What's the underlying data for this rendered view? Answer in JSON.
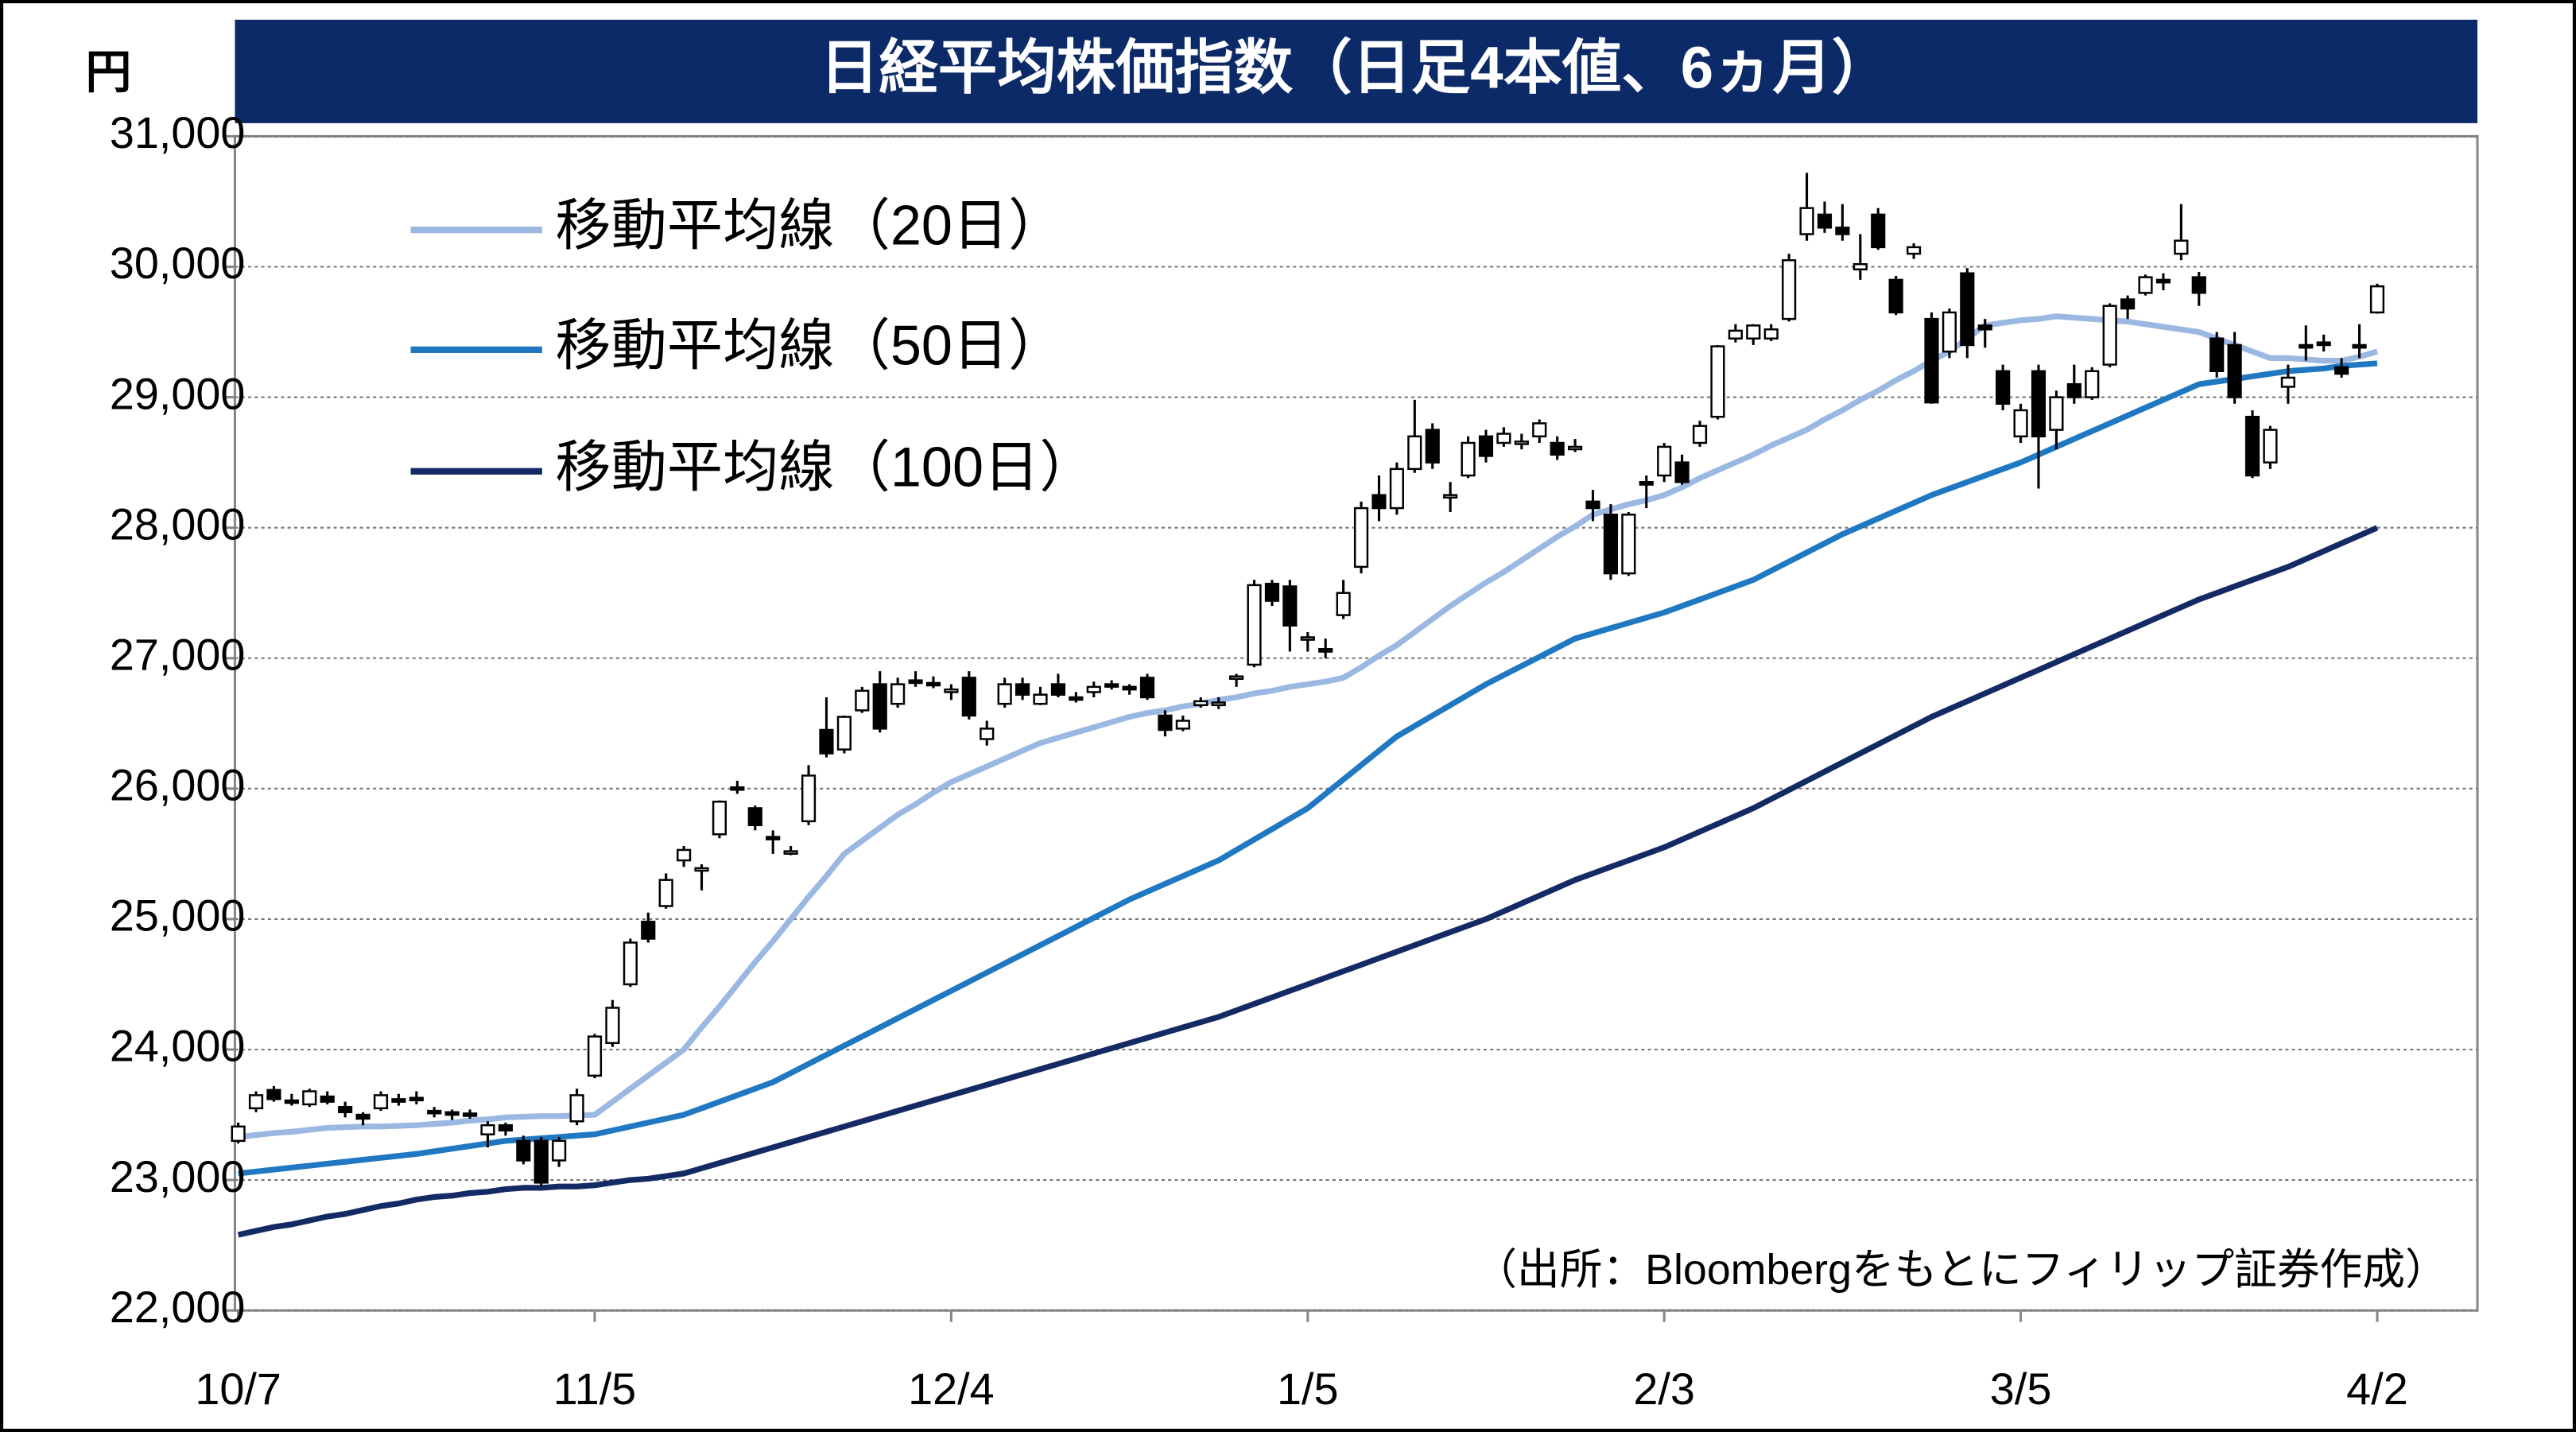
{
  "chart_data": {
    "type": "candlestick",
    "title": "日経平均株価指数（日足4本値、6ヵ月）",
    "y_unit": "円",
    "annotation": "（出所：Bloombergをもとにフィリップ証券作成）",
    "ylim": [
      22000,
      31000
    ],
    "yticks": [
      {
        "value": 22000,
        "label": "22,000"
      },
      {
        "value": 23000,
        "label": "23,000"
      },
      {
        "value": 24000,
        "label": "24,000"
      },
      {
        "value": 25000,
        "label": "25,000"
      },
      {
        "value": 26000,
        "label": "26,000"
      },
      {
        "value": 27000,
        "label": "27,000"
      },
      {
        "value": 28000,
        "label": "28,000"
      },
      {
        "value": 29000,
        "label": "29,000"
      },
      {
        "value": 30000,
        "label": "30,000"
      },
      {
        "value": 31000,
        "label": "31,000"
      }
    ],
    "grid": true,
    "up_color": "#ffffff",
    "down_color": "#000000",
    "categories": [
      "10/7",
      null,
      null,
      null,
      null,
      null,
      null,
      null,
      null,
      null,
      null,
      null,
      null,
      null,
      null,
      null,
      null,
      null,
      null,
      null,
      "11/5",
      null,
      null,
      null,
      null,
      null,
      null,
      null,
      null,
      null,
      null,
      null,
      null,
      null,
      null,
      null,
      null,
      null,
      null,
      null,
      "12/4",
      null,
      null,
      null,
      null,
      null,
      null,
      null,
      null,
      null,
      null,
      null,
      null,
      null,
      null,
      null,
      null,
      null,
      null,
      null,
      "1/5",
      null,
      null,
      null,
      null,
      null,
      null,
      null,
      null,
      null,
      null,
      null,
      null,
      null,
      null,
      null,
      null,
      null,
      null,
      null,
      "2/3",
      null,
      null,
      null,
      null,
      null,
      null,
      null,
      null,
      null,
      null,
      null,
      null,
      null,
      null,
      null,
      null,
      null,
      null,
      null,
      "3/5",
      null,
      null,
      null,
      null,
      null,
      null,
      null,
      null,
      null,
      null,
      null,
      null,
      null,
      null,
      null,
      null,
      null,
      null,
      null,
      "4/2"
    ],
    "ohlc": [
      [
        23300,
        23440,
        23280,
        23410
      ],
      [
        23550,
        23680,
        23520,
        23650
      ],
      [
        23690,
        23720,
        23600,
        23620
      ],
      [
        23610,
        23660,
        23570,
        23600
      ],
      [
        23580,
        23700,
        23560,
        23680
      ],
      [
        23640,
        23680,
        23580,
        23600
      ],
      [
        23560,
        23600,
        23480,
        23520
      ],
      [
        23500,
        23520,
        23420,
        23470
      ],
      [
        23550,
        23680,
        23530,
        23650
      ],
      [
        23620,
        23660,
        23570,
        23600
      ],
      [
        23630,
        23680,
        23580,
        23620
      ],
      [
        23530,
        23560,
        23480,
        23520
      ],
      [
        23520,
        23540,
        23460,
        23500
      ],
      [
        23510,
        23540,
        23470,
        23500
      ],
      [
        23350,
        23450,
        23250,
        23420
      ],
      [
        23420,
        23440,
        23340,
        23380
      ],
      [
        23300,
        23340,
        23120,
        23150
      ],
      [
        23300,
        23330,
        22950,
        22980
      ],
      [
        23150,
        23330,
        23100,
        23300
      ],
      [
        23450,
        23700,
        23420,
        23650
      ],
      [
        23800,
        24120,
        23780,
        24100
      ],
      [
        24050,
        24380,
        24020,
        24320
      ],
      [
        24500,
        24850,
        24480,
        24820
      ],
      [
        24980,
        25050,
        24820,
        24850
      ],
      [
        25100,
        25350,
        25080,
        25300
      ],
      [
        25450,
        25560,
        25400,
        25530
      ],
      [
        25380,
        25420,
        25220,
        25390
      ],
      [
        25650,
        25910,
        25620,
        25900
      ],
      [
        26010,
        26060,
        25960,
        26000
      ],
      [
        25850,
        25870,
        25680,
        25720
      ],
      [
        25630,
        25680,
        25500,
        25620
      ],
      [
        25520,
        25560,
        25490,
        25520
      ],
      [
        25750,
        26180,
        25720,
        26100
      ],
      [
        26450,
        26700,
        26240,
        26270
      ],
      [
        26300,
        26560,
        26270,
        26550
      ],
      [
        26600,
        26780,
        26580,
        26750
      ],
      [
        26800,
        26900,
        26430,
        26460
      ],
      [
        26650,
        26850,
        26620,
        26800
      ],
      [
        26830,
        26900,
        26780,
        26810
      ],
      [
        26810,
        26860,
        26770,
        26800
      ],
      [
        26740,
        26800,
        26680,
        26760
      ],
      [
        26850,
        26900,
        26530,
        26560
      ],
      [
        26380,
        26520,
        26330,
        26460
      ],
      [
        26650,
        26850,
        26620,
        26800
      ],
      [
        26800,
        26850,
        26680,
        26720
      ],
      [
        26650,
        26780,
        26640,
        26720
      ],
      [
        26800,
        26880,
        26700,
        26720
      ],
      [
        26700,
        26740,
        26660,
        26690
      ],
      [
        26740,
        26820,
        26700,
        26780
      ],
      [
        26800,
        26830,
        26760,
        26790
      ],
      [
        26780,
        26800,
        26720,
        26760
      ],
      [
        26850,
        26880,
        26680,
        26700
      ],
      [
        26560,
        26600,
        26400,
        26450
      ],
      [
        26460,
        26560,
        26440,
        26520
      ],
      [
        26640,
        26700,
        26620,
        26670
      ],
      [
        26640,
        26700,
        26610,
        26660
      ],
      [
        26850,
        26880,
        26780,
        26860
      ],
      [
        26950,
        27600,
        26930,
        27560
      ],
      [
        27570,
        27600,
        27400,
        27440
      ],
      [
        27550,
        27600,
        27050,
        27250
      ],
      [
        27150,
        27200,
        27050,
        27160
      ],
      [
        27070,
        27150,
        27000,
        27050
      ],
      [
        27330,
        27600,
        27300,
        27500
      ],
      [
        27700,
        28200,
        27650,
        28150
      ],
      [
        28250,
        28400,
        28050,
        28150
      ],
      [
        28150,
        28500,
        28100,
        28450
      ],
      [
        28450,
        28980,
        28420,
        28700
      ],
      [
        28750,
        28800,
        28450,
        28500
      ],
      [
        28250,
        28350,
        28120,
        28250
      ],
      [
        28400,
        28700,
        28380,
        28650
      ],
      [
        28700,
        28750,
        28500,
        28550
      ],
      [
        28650,
        28770,
        28620,
        28720
      ],
      [
        28650,
        28720,
        28600,
        28660
      ],
      [
        28700,
        28830,
        28650,
        28800
      ],
      [
        28650,
        28700,
        28520,
        28560
      ],
      [
        28620,
        28680,
        28580,
        28620
      ],
      [
        28200,
        28290,
        28050,
        28150
      ],
      [
        28100,
        28180,
        27600,
        27650
      ],
      [
        27650,
        28120,
        27630,
        28100
      ],
      [
        28350,
        28400,
        28150,
        28330
      ],
      [
        28400,
        28650,
        28350,
        28620
      ],
      [
        28500,
        28560,
        28330,
        28350
      ],
      [
        28650,
        28820,
        28620,
        28780
      ],
      [
        28850,
        29400,
        28830,
        29390
      ],
      [
        29450,
        29560,
        29420,
        29510
      ],
      [
        29450,
        29560,
        29400,
        29550
      ],
      [
        29450,
        29560,
        29430,
        29520
      ],
      [
        29600,
        30100,
        29580,
        30050
      ],
      [
        30250,
        30720,
        30200,
        30450
      ],
      [
        30400,
        30500,
        30260,
        30300
      ],
      [
        30300,
        30480,
        30200,
        30250
      ],
      [
        29980,
        30250,
        29900,
        30020
      ],
      [
        30400,
        30450,
        30130,
        30150
      ],
      [
        29900,
        29930,
        29630,
        29650
      ],
      [
        30100,
        30180,
        30060,
        30150
      ],
      [
        29600,
        29650,
        28950,
        28960
      ],
      [
        29350,
        29680,
        29300,
        29650
      ],
      [
        29950,
        29990,
        29300,
        29400
      ],
      [
        29550,
        29600,
        29380,
        29520
      ],
      [
        29200,
        29250,
        28900,
        28950
      ],
      [
        28700,
        28950,
        28650,
        28900
      ],
      [
        29200,
        29250,
        28300,
        28700
      ],
      [
        28750,
        29050,
        28600,
        29000
      ],
      [
        29100,
        29250,
        28950,
        29000
      ],
      [
        29000,
        29230,
        28980,
        29200
      ],
      [
        29250,
        29720,
        29230,
        29700
      ],
      [
        29750,
        29780,
        29600,
        29680
      ],
      [
        29800,
        29940,
        29780,
        29920
      ],
      [
        29900,
        29950,
        29820,
        29880
      ],
      [
        30100,
        30480,
        30050,
        30200
      ],
      [
        29920,
        29960,
        29700,
        29800
      ],
      [
        29450,
        29500,
        29150,
        29200
      ],
      [
        29400,
        29500,
        28950,
        29000
      ],
      [
        28850,
        28900,
        28380,
        28400
      ],
      [
        28500,
        28780,
        28450,
        28750
      ],
      [
        29080,
        29250,
        28950,
        29150
      ],
      [
        29400,
        29550,
        29280,
        29380
      ],
      [
        29420,
        29480,
        29350,
        29400
      ],
      [
        29230,
        29300,
        29150,
        29180
      ],
      [
        29400,
        29560,
        29300,
        29380
      ],
      [
        29650,
        29870,
        29640,
        29850
      ]
    ],
    "series": [
      {
        "name": "移動平均線（20日）",
        "color": "#9ab8e2",
        "values": [
          23330,
          23345,
          23360,
          23370,
          23385,
          23400,
          23405,
          23410,
          23410,
          23415,
          23420,
          23430,
          23440,
          23455,
          23465,
          23480,
          23485,
          23490,
          23490,
          23495,
          23500,
          23600,
          23700,
          23800,
          23900,
          24000,
          24170,
          24330,
          24500,
          24670,
          24830,
          25000,
          25170,
          25330,
          25500,
          25600,
          25700,
          25800,
          25880,
          25970,
          26050,
          26110,
          26170,
          26230,
          26290,
          26350,
          26390,
          26430,
          26470,
          26510,
          26550,
          26580,
          26600,
          26630,
          26650,
          26680,
          26700,
          26730,
          26750,
          26780,
          26800,
          26820,
          26850,
          26930,
          27020,
          27100,
          27200,
          27300,
          27400,
          27490,
          27580,
          27660,
          27750,
          27840,
          27930,
          28010,
          28100,
          28140,
          28180,
          28210,
          28250,
          28310,
          28380,
          28440,
          28500,
          28560,
          28630,
          28690,
          28750,
          28830,
          28900,
          28980,
          29050,
          29130,
          29200,
          29280,
          29350,
          29450,
          29550,
          29570,
          29590,
          29600,
          29620,
          29610,
          29600,
          29590,
          29580,
          29560,
          29540,
          29520,
          29500,
          29450,
          29400,
          29350,
          29300,
          29300,
          29290,
          29280,
          29280,
          29310,
          29350
        ]
      },
      {
        "name": "移動平均線（50日）",
        "color": "#1f78c1",
        "values": [
          23050,
          23065,
          23080,
          23095,
          23110,
          23125,
          23140,
          23155,
          23170,
          23185,
          23200,
          23220,
          23240,
          23260,
          23280,
          23300,
          23310,
          23320,
          23330,
          23340,
          23350,
          23380,
          23410,
          23440,
          23470,
          23500,
          23550,
          23600,
          23650,
          23700,
          23750,
          23820,
          23890,
          23960,
          24030,
          24100,
          24170,
          24240,
          24310,
          24380,
          24450,
          24520,
          24590,
          24660,
          24730,
          24800,
          24870,
          24940,
          25010,
          25080,
          25150,
          25210,
          25270,
          25330,
          25390,
          25450,
          25530,
          25610,
          25690,
          25770,
          25850,
          25960,
          26070,
          26180,
          26290,
          26400,
          26480,
          26560,
          26640,
          26720,
          26800,
          26870,
          26940,
          27010,
          27080,
          27150,
          27190,
          27230,
          27270,
          27310,
          27350,
          27400,
          27450,
          27500,
          27550,
          27600,
          27670,
          27740,
          27810,
          27880,
          27950,
          28010,
          28070,
          28130,
          28190,
          28250,
          28300,
          28350,
          28400,
          28450,
          28500,
          28560,
          28620,
          28680,
          28740,
          28800,
          28860,
          28920,
          28980,
          29040,
          29100,
          29120,
          29140,
          29160,
          29180,
          29200,
          29210,
          29220,
          29240,
          29250,
          29260
        ]
      },
      {
        "name": "移動平均線（100日）",
        "color": "#142a64",
        "values": [
          22580,
          22610,
          22640,
          22660,
          22690,
          22720,
          22740,
          22770,
          22800,
          22820,
          22850,
          22870,
          22880,
          22900,
          22910,
          22930,
          22940,
          22940,
          22950,
          22950,
          22960,
          22980,
          23000,
          23010,
          23030,
          23050,
          23090,
          23130,
          23170,
          23210,
          23250,
          23290,
          23330,
          23370,
          23410,
          23450,
          23490,
          23530,
          23570,
          23610,
          23650,
          23690,
          23730,
          23770,
          23810,
          23850,
          23890,
          23930,
          23970,
          24010,
          24050,
          24090,
          24130,
          24170,
          24210,
          24250,
          24300,
          24350,
          24400,
          24450,
          24500,
          24550,
          24600,
          24650,
          24700,
          24750,
          24800,
          24850,
          24900,
          24950,
          25000,
          25060,
          25120,
          25180,
          25240,
          25300,
          25350,
          25400,
          25450,
          25500,
          25550,
          25610,
          25670,
          25730,
          25790,
          25850,
          25920,
          25990,
          26060,
          26130,
          26200,
          26270,
          26340,
          26410,
          26480,
          26550,
          26610,
          26670,
          26730,
          26790,
          26850,
          26910,
          26970,
          27030,
          27090,
          27150,
          27210,
          27270,
          27330,
          27390,
          27450,
          27500,
          27550,
          27600,
          27650,
          27700,
          27760,
          27820,
          27880,
          27940,
          28000
        ]
      }
    ]
  }
}
